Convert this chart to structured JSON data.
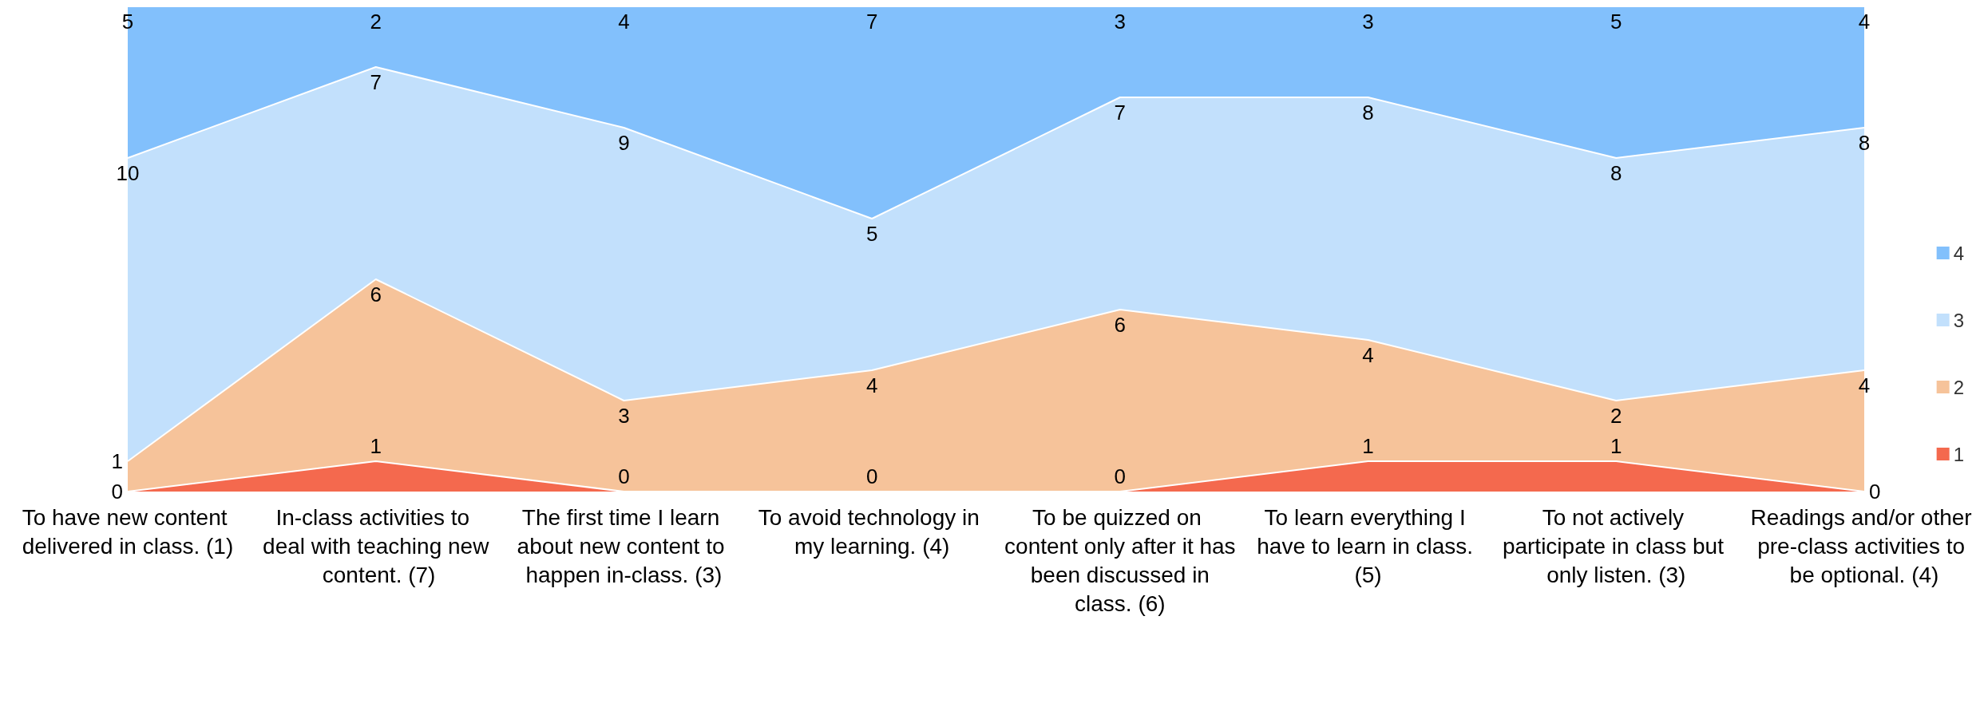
{
  "chart_data": {
    "type": "area",
    "stacked": true,
    "data_labels": true,
    "legend": "right",
    "grid": false,
    "tick_labels": "x",
    "categories": [
      "To have new content delivered in class. (1)",
      "In-class activities to deal with teaching new content. (7)",
      "The first time I learn about new content to happen in-class. (3)",
      "To avoid technology in my learning. (4)",
      "To be quizzed on content only after it has been discussed in class. (6)",
      "To learn everything I have to learn in class. (5)",
      "To not actively participate in class but only listen. (3)",
      "Readings and/or other pre-class activities to be optional. (4)"
    ],
    "series": [
      {
        "name": "1",
        "color": "#f4694e",
        "values": [
          0,
          1,
          0,
          0,
          0,
          1,
          1,
          0
        ]
      },
      {
        "name": "2",
        "color": "#f6c39a",
        "values": [
          1,
          6,
          3,
          4,
          6,
          4,
          2,
          4
        ]
      },
      {
        "name": "3",
        "color": "#c2e0fc",
        "values": [
          10,
          7,
          9,
          5,
          7,
          8,
          8,
          8
        ]
      },
      {
        "name": "4",
        "color": "#82c0fc",
        "values": [
          5,
          2,
          4,
          7,
          3,
          3,
          5,
          4
        ]
      }
    ]
  }
}
